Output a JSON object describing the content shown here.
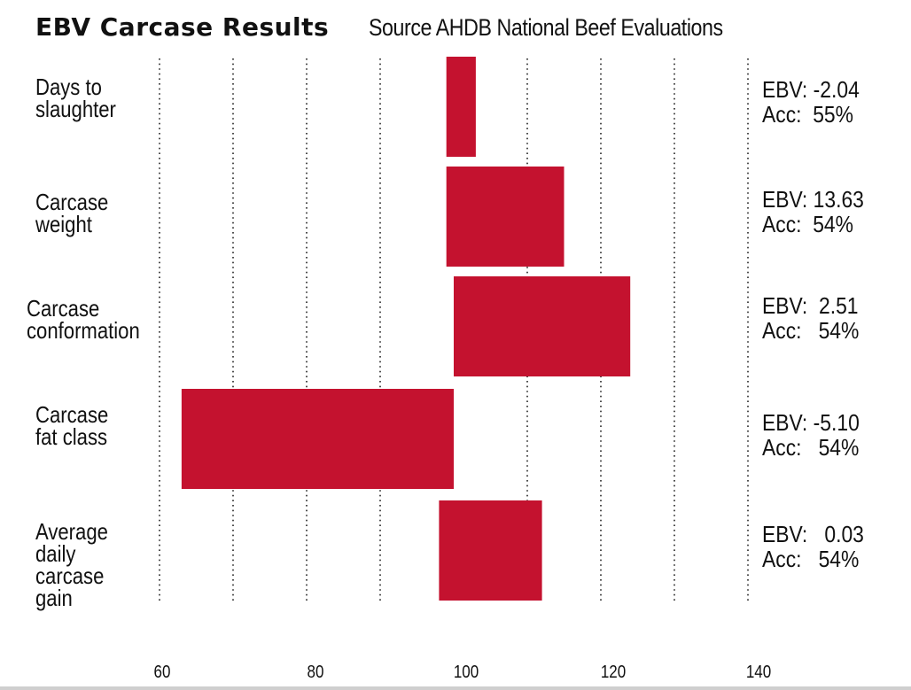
{
  "title": "EBV Carcase Results",
  "subtitle": "Source AHDB National Beef Evaluations",
  "colors": {
    "bar": "#c4122f",
    "gridline": "#222222",
    "text": "#111111"
  },
  "chart_data": {
    "type": "bar",
    "orientation": "horizontal",
    "baseline": 100,
    "categories": [
      "Days to\nslaughter",
      "Carcase\nweight",
      "Carcase\nconformation",
      "Carcase\nfat class",
      "Average\ndaily\ncarcase\ngain"
    ],
    "values": [
      103,
      115,
      124,
      63,
      112
    ],
    "bar_start": [
      99,
      99,
      100,
      100,
      98
    ],
    "annotations": [
      {
        "ebv": "EBV: -2.04",
        "acc": "Acc:  55%"
      },
      {
        "ebv": "EBV: 13.63",
        "acc": "Acc:  54%"
      },
      {
        "ebv": "EBV:  2.51",
        "acc": "Acc:   54%"
      },
      {
        "ebv": "EBV: -5.10",
        "acc": "Acc:   54%"
      },
      {
        "ebv": "EBV:   0.03",
        "acc": "Acc:   54%"
      }
    ],
    "x_ticks": [
      60,
      80,
      100,
      120,
      140
    ],
    "xlim": [
      60,
      140
    ],
    "grid": "vertical dotted",
    "legend": "none"
  }
}
